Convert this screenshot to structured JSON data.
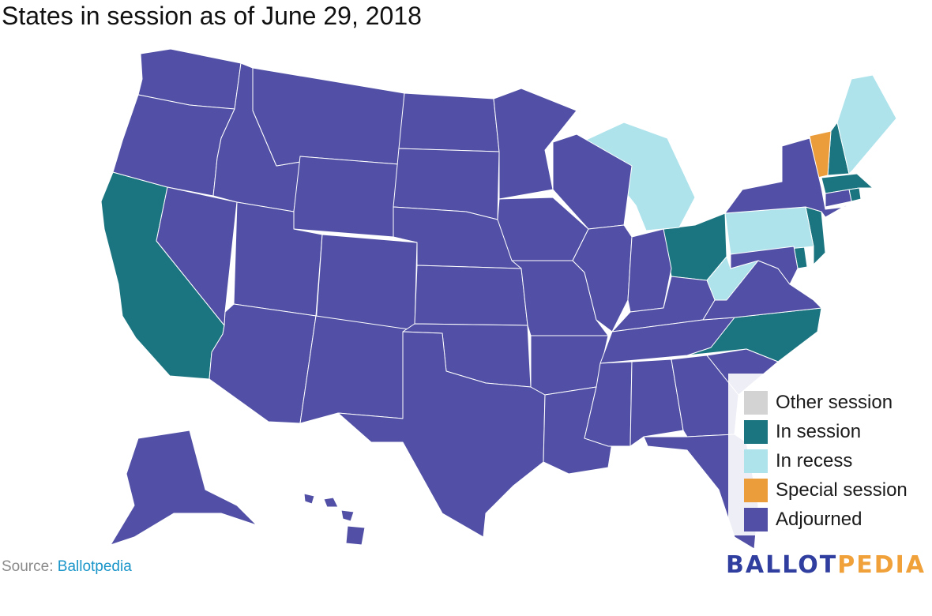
{
  "title": "States in session as of June 29, 2018",
  "legend": [
    {
      "label": "Other session",
      "color": "#d3d3d3"
    },
    {
      "label": "In session",
      "color": "#1b7580"
    },
    {
      "label": "In recess",
      "color": "#aee3ec"
    },
    {
      "label": "Special session",
      "color": "#eb9c3b"
    },
    {
      "label": "Adjourned",
      "color": "#5150a6"
    }
  ],
  "source": {
    "prefix": "Source: ",
    "link": "Ballotpedia"
  },
  "logo": {
    "part1": "BALLOT",
    "part2": "PEDIA"
  },
  "colors": {
    "adjourned": "#5150a6",
    "in_session": "#1b7580",
    "in_recess": "#aee3ec",
    "special_session": "#eb9c3b",
    "other_session": "#d3d3d3",
    "state_border": "#ffffff"
  },
  "states": [
    {
      "name": "California",
      "status": "in_session"
    },
    {
      "name": "Ohio",
      "status": "in_session"
    },
    {
      "name": "North Carolina",
      "status": "in_session"
    },
    {
      "name": "New Jersey",
      "status": "in_session"
    },
    {
      "name": "New Hampshire",
      "status": "in_session"
    },
    {
      "name": "Massachusetts",
      "status": "in_session"
    },
    {
      "name": "Delaware",
      "status": "in_session"
    },
    {
      "name": "Rhode Island",
      "status": "in_session"
    },
    {
      "name": "Michigan",
      "status": "in_recess"
    },
    {
      "name": "Pennsylvania",
      "status": "in_recess"
    },
    {
      "name": "Maine",
      "status": "in_recess"
    },
    {
      "name": "West Virginia",
      "status": "in_recess"
    },
    {
      "name": "Vermont",
      "status": "special_session"
    },
    {
      "name": "Washington",
      "status": "adjourned"
    },
    {
      "name": "Oregon",
      "status": "adjourned"
    },
    {
      "name": "Idaho",
      "status": "adjourned"
    },
    {
      "name": "Montana",
      "status": "adjourned"
    },
    {
      "name": "Wyoming",
      "status": "adjourned"
    },
    {
      "name": "Nevada",
      "status": "adjourned"
    },
    {
      "name": "Utah",
      "status": "adjourned"
    },
    {
      "name": "Colorado",
      "status": "adjourned"
    },
    {
      "name": "Arizona",
      "status": "adjourned"
    },
    {
      "name": "New Mexico",
      "status": "adjourned"
    },
    {
      "name": "North Dakota",
      "status": "adjourned"
    },
    {
      "name": "South Dakota",
      "status": "adjourned"
    },
    {
      "name": "Nebraska",
      "status": "adjourned"
    },
    {
      "name": "Kansas",
      "status": "adjourned"
    },
    {
      "name": "Oklahoma",
      "status": "adjourned"
    },
    {
      "name": "Texas",
      "status": "adjourned"
    },
    {
      "name": "Minnesota",
      "status": "adjourned"
    },
    {
      "name": "Iowa",
      "status": "adjourned"
    },
    {
      "name": "Missouri",
      "status": "adjourned"
    },
    {
      "name": "Arkansas",
      "status": "adjourned"
    },
    {
      "name": "Louisiana",
      "status": "adjourned"
    },
    {
      "name": "Wisconsin",
      "status": "adjourned"
    },
    {
      "name": "Illinois",
      "status": "adjourned"
    },
    {
      "name": "Indiana",
      "status": "adjourned"
    },
    {
      "name": "Kentucky",
      "status": "adjourned"
    },
    {
      "name": "Tennessee",
      "status": "adjourned"
    },
    {
      "name": "Mississippi",
      "status": "adjourned"
    },
    {
      "name": "Alabama",
      "status": "adjourned"
    },
    {
      "name": "Georgia",
      "status": "adjourned"
    },
    {
      "name": "Florida",
      "status": "adjourned"
    },
    {
      "name": "South Carolina",
      "status": "adjourned"
    },
    {
      "name": "Virginia",
      "status": "adjourned"
    },
    {
      "name": "Maryland",
      "status": "adjourned"
    },
    {
      "name": "New York",
      "status": "adjourned"
    },
    {
      "name": "Connecticut",
      "status": "adjourned"
    },
    {
      "name": "Alaska",
      "status": "adjourned"
    },
    {
      "name": "Hawaii",
      "status": "adjourned"
    }
  ]
}
